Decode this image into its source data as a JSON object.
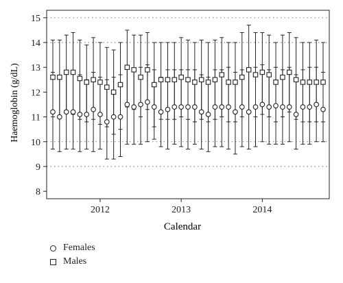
{
  "chart_data": {
    "type": "scatter",
    "xlabel": "Calendar",
    "ylabel": "Haemoglobin (g/dL)",
    "x_ticks": [
      "2012",
      "2013",
      "2014"
    ],
    "y_ticks": [
      8,
      9,
      10,
      11,
      12,
      13,
      14,
      15
    ],
    "ylim": [
      7.7,
      15.3
    ],
    "grid": "horizontal dotted at 9, 10, 14, 15",
    "legend_position": "bottom-left",
    "x": [
      "2011-06",
      "2011-07",
      "2011-08",
      "2011-09",
      "2011-10",
      "2011-11",
      "2011-12",
      "2012-01",
      "2012-02",
      "2012-03",
      "2012-04",
      "2012-05",
      "2012-06",
      "2012-07",
      "2012-08",
      "2012-09",
      "2012-10",
      "2012-11",
      "2012-12",
      "2013-01",
      "2013-02",
      "2013-03",
      "2013-04",
      "2013-05",
      "2013-06",
      "2013-07",
      "2013-08",
      "2013-09",
      "2013-10",
      "2013-11",
      "2013-12",
      "2014-01",
      "2014-02",
      "2014-03",
      "2014-04",
      "2014-05",
      "2014-06",
      "2014-07",
      "2014-08",
      "2014-09",
      "2014-10"
    ],
    "series": [
      {
        "name": "Females",
        "marker": "circle",
        "values": [
          11.2,
          11.0,
          11.2,
          11.2,
          11.1,
          11.1,
          11.3,
          11.1,
          10.8,
          11.0,
          11.0,
          11.5,
          11.4,
          11.5,
          11.6,
          11.4,
          11.2,
          11.3,
          11.4,
          11.4,
          11.4,
          11.4,
          11.2,
          11.1,
          11.4,
          11.4,
          11.4,
          11.2,
          11.4,
          11.2,
          11.4,
          11.5,
          11.4,
          11.45,
          11.4,
          11.4,
          11.1,
          11.4,
          11.4,
          11.5,
          11.3
        ],
        "lower": [
          9.7,
          9.6,
          9.7,
          9.7,
          9.6,
          9.7,
          9.6,
          9.7,
          9.3,
          9.3,
          9.4,
          9.9,
          9.9,
          9.9,
          10.0,
          10.1,
          9.8,
          9.7,
          9.9,
          9.8,
          9.7,
          9.9,
          9.7,
          9.6,
          9.8,
          9.8,
          9.7,
          9.5,
          9.8,
          9.7,
          9.8,
          10.0,
          9.9,
          9.9,
          9.9,
          10.0,
          9.7,
          9.9,
          9.9,
          10.0,
          10.0
        ],
        "upper": [
          12.8,
          12.6,
          12.8,
          12.8,
          12.7,
          12.5,
          12.8,
          12.6,
          12.5,
          12.6,
          12.7,
          13.0,
          12.9,
          13.0,
          13.1,
          12.9,
          12.6,
          12.9,
          12.9,
          12.9,
          12.9,
          12.9,
          12.7,
          12.6,
          12.9,
          12.9,
          13.0,
          12.8,
          12.9,
          12.9,
          13.0,
          13.1,
          12.9,
          13.0,
          12.9,
          13.0,
          12.7,
          12.9,
          13.0,
          13.0,
          12.8
        ]
      },
      {
        "name": "Males",
        "marker": "square",
        "values": [
          12.6,
          12.6,
          12.8,
          12.8,
          12.55,
          12.4,
          12.5,
          12.4,
          12.2,
          12.0,
          12.3,
          13.0,
          12.9,
          12.6,
          12.9,
          12.3,
          12.5,
          12.5,
          12.5,
          12.6,
          12.5,
          12.4,
          12.5,
          12.4,
          12.5,
          12.7,
          12.4,
          12.4,
          12.6,
          12.9,
          12.7,
          12.8,
          12.7,
          12.4,
          12.6,
          12.8,
          12.5,
          12.4,
          12.4,
          12.4,
          12.4
        ],
        "lower": [
          11.0,
          11.0,
          11.2,
          11.1,
          10.9,
          10.8,
          10.9,
          10.7,
          10.6,
          10.3,
          10.5,
          11.4,
          11.3,
          11.0,
          11.3,
          10.6,
          10.9,
          10.9,
          10.9,
          11.0,
          10.9,
          10.8,
          10.9,
          10.8,
          10.9,
          11.0,
          10.8,
          10.8,
          11.0,
          11.2,
          11.0,
          11.1,
          11.0,
          10.8,
          11.0,
          11.2,
          10.9,
          10.8,
          10.8,
          10.8,
          10.8
        ],
        "upper": [
          14.1,
          14.1,
          14.3,
          14.4,
          14.1,
          13.9,
          14.2,
          14.0,
          13.8,
          13.7,
          14.0,
          14.5,
          14.3,
          14.3,
          14.4,
          14.0,
          14.0,
          14.0,
          14.0,
          14.2,
          14.1,
          14.0,
          14.1,
          14.0,
          14.1,
          14.2,
          14.0,
          14.0,
          14.4,
          14.7,
          14.4,
          14.4,
          14.3,
          14.0,
          14.3,
          14.4,
          14.2,
          14.0,
          14.0,
          14.1,
          14.0
        ]
      }
    ]
  }
}
